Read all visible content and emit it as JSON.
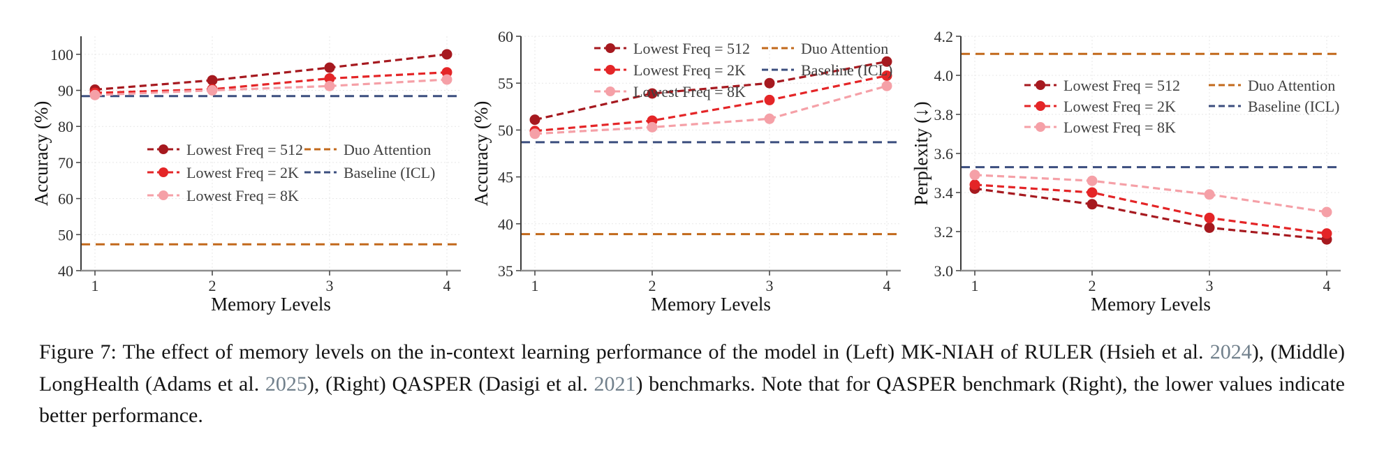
{
  "figure": {
    "caption": {
      "segments": [
        {
          "type": "text",
          "text": "Figure 7: The effect of memory levels on the in-context learning performance of the model in (Left) MK-NIAH of RULER (Hsieh et al. "
        },
        {
          "type": "cite",
          "text": "2024"
        },
        {
          "type": "text",
          "text": "), (Middle) LongHealth (Adams et al. "
        },
        {
          "type": "cite",
          "text": "2025"
        },
        {
          "type": "text",
          "text": "), (Right) QASPER (Dasigi et al. "
        },
        {
          "type": "cite",
          "text": "2021"
        },
        {
          "type": "text",
          "text": ") benchmarks. Note that for QASPER benchmark (Right), the lower values indicate better performance."
        }
      ],
      "citation_color": "#71808c"
    }
  },
  "chart_data": [
    {
      "type": "line",
      "xlabel": "Memory Levels",
      "ylabel": "Accuracy (%)",
      "categories": [
        "1",
        "2",
        "3",
        "4"
      ],
      "ylim": [
        40,
        105
      ],
      "yticks": [
        40,
        50,
        60,
        70,
        80,
        90,
        100
      ],
      "ytick_labels": [
        "40",
        "50",
        "60",
        "70",
        "80",
        "90",
        "100"
      ],
      "grid": true,
      "series": [
        {
          "name": "Lowest Freq = 512",
          "color": "#A6191F",
          "values": [
            90.2,
            92.8,
            96.3,
            100.0
          ]
        },
        {
          "name": "Lowest Freq = 2K",
          "color": "#E42527",
          "values": [
            89.3,
            90.3,
            93.3,
            95.0
          ]
        },
        {
          "name": "Lowest Freq = 8K",
          "color": "#F5A0A7",
          "values": [
            88.7,
            90.0,
            91.2,
            93.0
          ]
        }
      ],
      "hlines": [
        {
          "name": "Duo Attention",
          "color": "#C2691B",
          "value": 47.3
        },
        {
          "name": "Baseline (ICL)",
          "color": "#3B4E7E",
          "value": 88.4
        }
      ],
      "legend": {
        "position": "center-left",
        "col1": {
          "x": 165,
          "y": 178
        },
        "col2": {
          "x": 390,
          "y": 178
        },
        "row_gap": 33
      }
    },
    {
      "type": "line",
      "xlabel": "Memory Levels",
      "ylabel": "Accuracy (%)",
      "categories": [
        "1",
        "2",
        "3",
        "4"
      ],
      "ylim": [
        35,
        60
      ],
      "yticks": [
        35,
        40,
        45,
        50,
        55,
        60
      ],
      "ytick_labels": [
        "35",
        "40",
        "45",
        "50",
        "55",
        "60"
      ],
      "grid": true,
      "series": [
        {
          "name": "Lowest Freq = 512",
          "color": "#A6191F",
          "values": [
            51.1,
            53.9,
            55.0,
            57.3
          ]
        },
        {
          "name": "Lowest Freq = 2K",
          "color": "#E42527",
          "values": [
            49.9,
            51.0,
            53.2,
            55.8
          ]
        },
        {
          "name": "Lowest Freq = 8K",
          "color": "#F5A0A7",
          "values": [
            49.6,
            50.3,
            51.2,
            54.7
          ]
        }
      ],
      "hlines": [
        {
          "name": "Duo Attention",
          "color": "#C2691B",
          "value": 38.9
        },
        {
          "name": "Baseline (ICL)",
          "color": "#3B4E7E",
          "value": 48.7
        }
      ],
      "legend": {
        "position": "top",
        "col1": {
          "x": 175,
          "y": 33
        },
        "col2": {
          "x": 415,
          "y": 33
        },
        "row_gap": 31
      }
    },
    {
      "type": "line",
      "xlabel": "Memory Levels",
      "ylabel": "Perplexity (↓)",
      "categories": [
        "1",
        "2",
        "3",
        "4"
      ],
      "ylim": [
        3.0,
        4.2
      ],
      "yticks": [
        3.0,
        3.2,
        3.4,
        3.6,
        3.8,
        4.0,
        4.2
      ],
      "ytick_labels": [
        "3.0",
        "3.2",
        "3.4",
        "3.6",
        "3.8",
        "4.0",
        "4.2"
      ],
      "grid": true,
      "series": [
        {
          "name": "Lowest Freq = 512",
          "color": "#A6191F",
          "values": [
            3.42,
            3.34,
            3.22,
            3.16
          ]
        },
        {
          "name": "Lowest Freq = 2K",
          "color": "#E42527",
          "values": [
            3.44,
            3.4,
            3.27,
            3.19
          ]
        },
        {
          "name": "Lowest Freq = 8K",
          "color": "#F5A0A7",
          "values": [
            3.49,
            3.46,
            3.39,
            3.3
          ]
        }
      ],
      "hlines": [
        {
          "name": "Duo Attention",
          "color": "#C2691B",
          "value": 4.11
        },
        {
          "name": "Baseline (ICL)",
          "color": "#3B4E7E",
          "value": 3.53
        }
      ],
      "legend": {
        "position": "upper-center",
        "col1": {
          "x": 161,
          "y": 86
        },
        "col2": {
          "x": 425,
          "y": 86
        },
        "row_gap": 30
      }
    }
  ]
}
